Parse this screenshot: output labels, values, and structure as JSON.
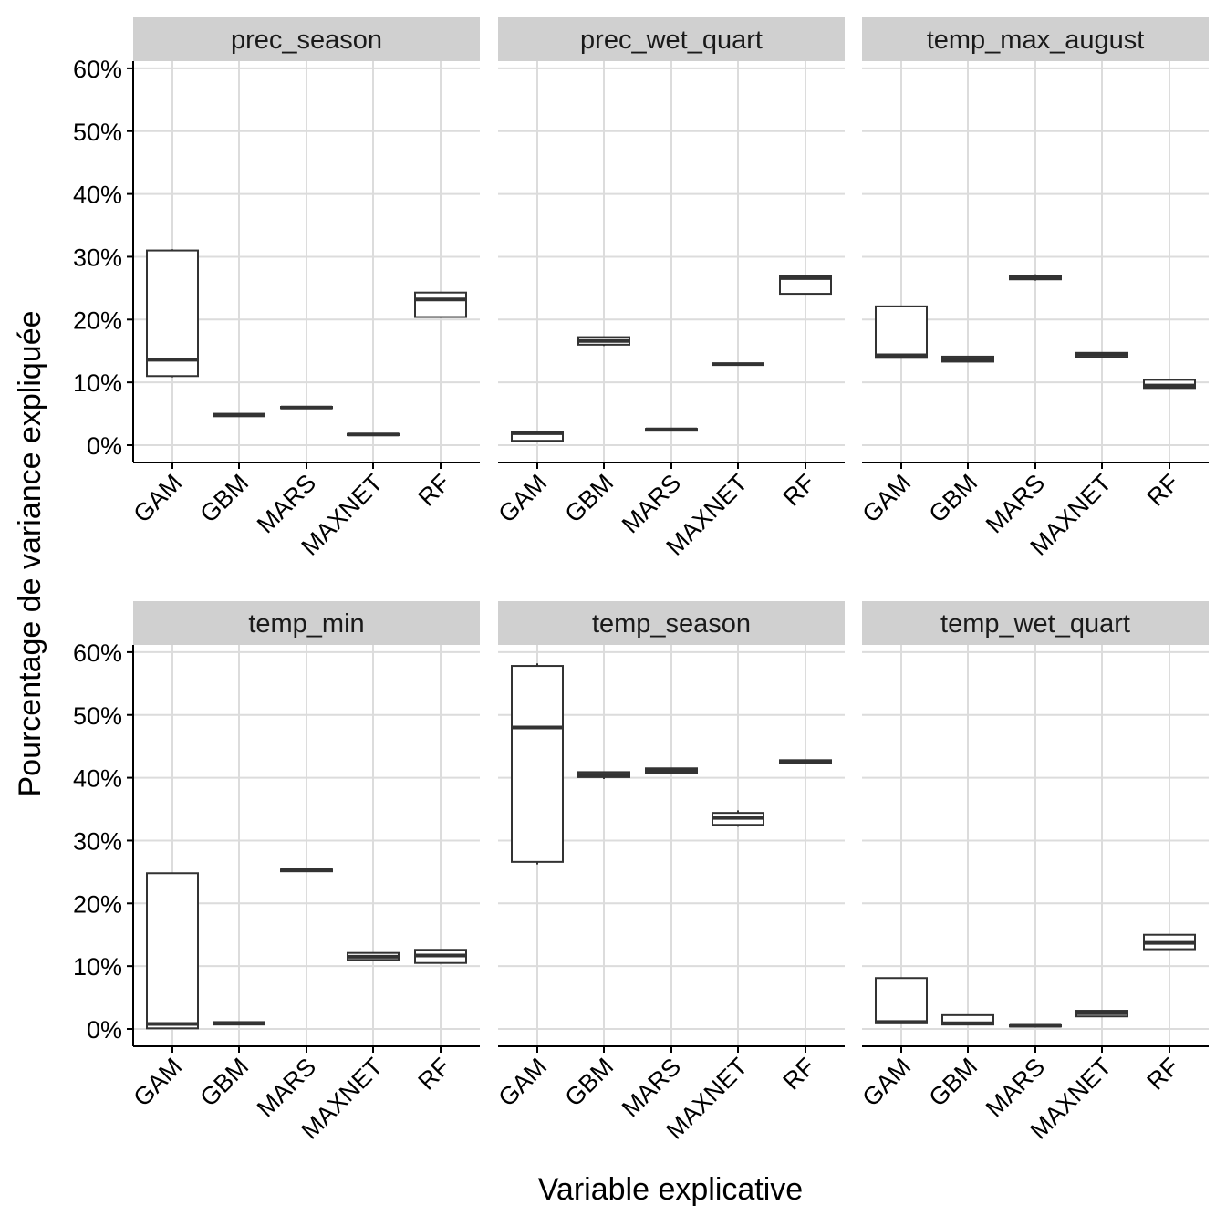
{
  "chart_data": {
    "type": "boxplot",
    "xlabel": "Variable explicative",
    "ylabel": "Pourcentage de variance expliquée",
    "ylim": [
      -3,
      61
    ],
    "yticks": [
      0,
      10,
      20,
      30,
      40,
      50,
      60
    ],
    "ytick_labels": [
      "0%",
      "10%",
      "20%",
      "30%",
      "40%",
      "50%",
      "60%"
    ],
    "categories": [
      "GAM",
      "GBM",
      "MARS",
      "MAXNET",
      "RF"
    ],
    "grid": true,
    "colors": {
      "strip_bg": "#d0d0d0",
      "grid": "#dcdcdc",
      "box": "#333333",
      "axis": "#000000"
    },
    "panels": [
      {
        "title": "prec_season",
        "boxes": [
          {
            "category": "GAM",
            "lower_whisker": 10.8,
            "q1": 11.0,
            "median": 13.6,
            "q3": 31.0,
            "upper_whisker": 31.2
          },
          {
            "category": "GBM",
            "lower_whisker": 4.5,
            "q1": 4.6,
            "median": 4.8,
            "q3": 5.0,
            "upper_whisker": 5.0
          },
          {
            "category": "MARS",
            "lower_whisker": 5.8,
            "q1": 5.9,
            "median": 6.0,
            "q3": 6.1,
            "upper_whisker": 6.1
          },
          {
            "category": "MAXNET",
            "lower_whisker": 1.5,
            "q1": 1.6,
            "median": 1.7,
            "q3": 1.8,
            "upper_whisker": 1.8
          },
          {
            "category": "RF",
            "lower_whisker": 20.3,
            "q1": 20.4,
            "median": 23.2,
            "q3": 24.3,
            "upper_whisker": 24.3
          }
        ]
      },
      {
        "title": "prec_wet_quart",
        "boxes": [
          {
            "category": "GAM",
            "lower_whisker": 0.7,
            "q1": 0.7,
            "median": 1.9,
            "q3": 2.1,
            "upper_whisker": 2.1
          },
          {
            "category": "GBM",
            "lower_whisker": 15.8,
            "q1": 16.0,
            "median": 16.6,
            "q3": 17.2,
            "upper_whisker": 17.3
          },
          {
            "category": "MARS",
            "lower_whisker": 2.2,
            "q1": 2.3,
            "median": 2.5,
            "q3": 2.6,
            "upper_whisker": 2.6
          },
          {
            "category": "MAXNET",
            "lower_whisker": 12.7,
            "q1": 12.8,
            "median": 12.9,
            "q3": 13.0,
            "upper_whisker": 13.0
          },
          {
            "category": "RF",
            "lower_whisker": 24.0,
            "q1": 24.1,
            "median": 26.6,
            "q3": 26.9,
            "upper_whisker": 27.0
          }
        ]
      },
      {
        "title": "temp_max_august",
        "boxes": [
          {
            "category": "GAM",
            "lower_whisker": 13.8,
            "q1": 13.9,
            "median": 14.3,
            "q3": 22.1,
            "upper_whisker": 22.1
          },
          {
            "category": "GBM",
            "lower_whisker": 13.2,
            "q1": 13.3,
            "median": 13.7,
            "q3": 14.1,
            "upper_whisker": 14.1
          },
          {
            "category": "MARS",
            "lower_whisker": 26.2,
            "q1": 26.4,
            "median": 26.7,
            "q3": 27.0,
            "upper_whisker": 27.2
          },
          {
            "category": "MAXNET",
            "lower_whisker": 13.9,
            "q1": 14.0,
            "median": 14.4,
            "q3": 14.7,
            "upper_whisker": 14.7
          },
          {
            "category": "RF",
            "lower_whisker": 9.0,
            "q1": 9.1,
            "median": 9.5,
            "q3": 10.4,
            "upper_whisker": 10.5
          }
        ]
      },
      {
        "title": "temp_min",
        "boxes": [
          {
            "category": "GAM",
            "lower_whisker": 0.0,
            "q1": 0.1,
            "median": 0.8,
            "q3": 24.8,
            "upper_whisker": 24.9
          },
          {
            "category": "GBM",
            "lower_whisker": 0.6,
            "q1": 0.7,
            "median": 0.9,
            "q3": 1.1,
            "upper_whisker": 1.1
          },
          {
            "category": "MARS",
            "lower_whisker": 25.0,
            "q1": 25.1,
            "median": 25.3,
            "q3": 25.4,
            "upper_whisker": 25.5
          },
          {
            "category": "MAXNET",
            "lower_whisker": 10.9,
            "q1": 11.0,
            "median": 11.5,
            "q3": 12.1,
            "upper_whisker": 12.1
          },
          {
            "category": "RF",
            "lower_whisker": 10.4,
            "q1": 10.5,
            "median": 11.7,
            "q3": 12.6,
            "upper_whisker": 12.6
          }
        ]
      },
      {
        "title": "temp_season",
        "boxes": [
          {
            "category": "GAM",
            "lower_whisker": 26.2,
            "q1": 26.6,
            "median": 48.0,
            "q3": 57.8,
            "upper_whisker": 58.2
          },
          {
            "category": "GBM",
            "lower_whisker": 39.8,
            "q1": 40.1,
            "median": 40.5,
            "q3": 40.9,
            "upper_whisker": 40.9
          },
          {
            "category": "MARS",
            "lower_whisker": 40.7,
            "q1": 40.8,
            "median": 41.1,
            "q3": 41.5,
            "upper_whisker": 41.5
          },
          {
            "category": "MAXNET",
            "lower_whisker": 32.2,
            "q1": 32.5,
            "median": 33.6,
            "q3": 34.4,
            "upper_whisker": 34.8
          },
          {
            "category": "RF",
            "lower_whisker": 42.3,
            "q1": 42.4,
            "median": 42.6,
            "q3": 42.8,
            "upper_whisker": 42.8
          }
        ]
      },
      {
        "title": "temp_wet_quart",
        "boxes": [
          {
            "category": "GAM",
            "lower_whisker": 0.9,
            "q1": 0.9,
            "median": 1.1,
            "q3": 8.1,
            "upper_whisker": 8.2
          },
          {
            "category": "GBM",
            "lower_whisker": 0.7,
            "q1": 0.7,
            "median": 0.9,
            "q3": 2.2,
            "upper_whisker": 2.2
          },
          {
            "category": "MARS",
            "lower_whisker": 0.3,
            "q1": 0.4,
            "median": 0.5,
            "q3": 0.6,
            "upper_whisker": 0.6
          },
          {
            "category": "MAXNET",
            "lower_whisker": 1.9,
            "q1": 2.0,
            "median": 2.5,
            "q3": 2.9,
            "upper_whisker": 2.9
          },
          {
            "category": "RF",
            "lower_whisker": 12.6,
            "q1": 12.7,
            "median": 13.7,
            "q3": 15.0,
            "upper_whisker": 15.0
          }
        ]
      }
    ]
  }
}
